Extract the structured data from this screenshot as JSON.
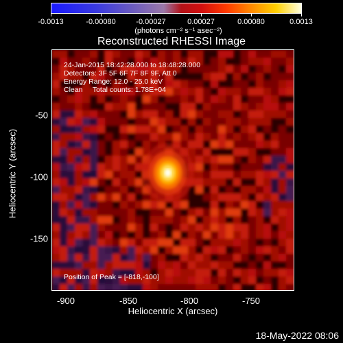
{
  "colorbar": {
    "ticks": [
      "-0.0013",
      "-0.00080",
      "-0.00027",
      "0.00027",
      "0.00080",
      "0.0013"
    ],
    "units": "(photons cm⁻² s⁻¹ asec⁻²)"
  },
  "title": "Reconstructed RHESSI Image",
  "info": {
    "time_range": "24-Jan-2015 18:42:28.000 to 18:48:28.000",
    "detectors": "Detectors: 3F 5F 6F 7F 8F 9F, Att 0",
    "energy": "Energy Range: 12.0 - 25.0 keV",
    "clean": "Clean     Total counts: 1.78E+04",
    "peak": "Position of Peak = [-818,-100]"
  },
  "axes": {
    "xlabel": "Heliocentric X (arcsec)",
    "ylabel": "Heliocentric Y (arcsec)",
    "xticks": [
      "-900",
      "-850",
      "-800",
      "-750"
    ],
    "yticks": [
      "-50",
      "-100",
      "-150"
    ]
  },
  "image": {
    "x_range": [
      -910,
      -718
    ],
    "y_range": [
      -190,
      -8
    ],
    "peak": {
      "x": -818,
      "y": -100
    }
  },
  "footer": "18-May-2022 08:06"
}
